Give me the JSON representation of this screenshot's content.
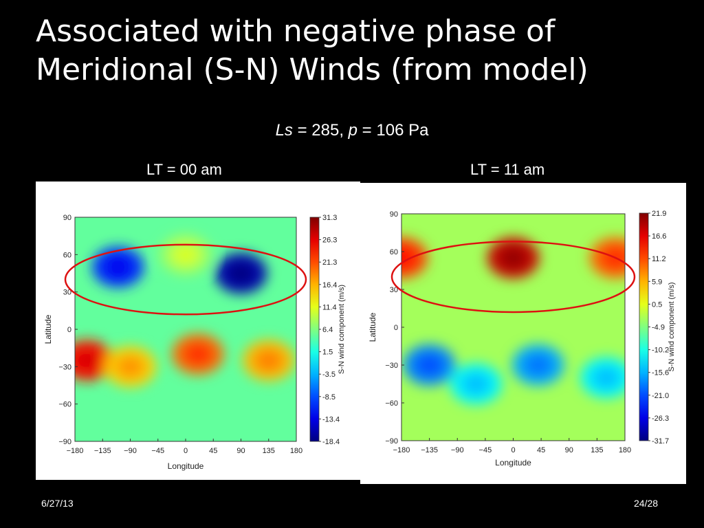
{
  "slide": {
    "title_line1": "Associated with negative phase of",
    "title_line2": "Meridional (S-N) Winds (from model)",
    "subtitle": {
      "ls_symbol": "Ls",
      "ls_text": " = 285, ",
      "p_symbol": "p",
      "p_text": " = 106 Pa"
    },
    "date": "6/27/13",
    "page": "24/28"
  },
  "colors": {
    "background": "#000000",
    "highlight_ellipse": "#dd1111"
  },
  "chart_data": [
    {
      "type": "heatmap",
      "panel_label": "LT = 00 am",
      "xlabel": "Longitude",
      "ylabel": "Latitude",
      "colorbar_label": "S-N wind component (m/s)",
      "x_ticks": [
        "−180",
        "−135",
        "−90",
        "−45",
        "0",
        "45",
        "90",
        "135",
        "180"
      ],
      "y_ticks": [
        "90",
        "60",
        "30",
        "0",
        "−30",
        "−60",
        "−90"
      ],
      "xlim": [
        -180,
        180
      ],
      "ylim": [
        -90,
        90
      ],
      "colorbar_ticks": [
        "31.3",
        "26.3",
        "21.3",
        "16.4",
        "11.4",
        "6.4",
        "1.5",
        "-3.5",
        "-8.5",
        "-13.4",
        "-18.4"
      ],
      "value_range": [
        -18.4,
        31.3
      ],
      "features": [
        {
          "lon": -110,
          "lat": 50,
          "value": -10
        },
        {
          "lon": 90,
          "lat": 45,
          "value": -16
        },
        {
          "lon": -160,
          "lat": -25,
          "value": 24
        },
        {
          "lon": 20,
          "lat": -20,
          "value": 20
        },
        {
          "lon": 135,
          "lat": -25,
          "value": 16
        },
        {
          "lon": -90,
          "lat": -30,
          "value": 15
        },
        {
          "lon": 0,
          "lat": 60,
          "value": 8
        }
      ],
      "highlight": {
        "lon_range": [
          -180,
          180
        ],
        "lat_center": 40,
        "lat_half_height": 28
      }
    },
    {
      "type": "heatmap",
      "panel_label": "LT = 11 am",
      "xlabel": "Longitude",
      "ylabel": "Latitude",
      "colorbar_label": "S-N wind component (m/s)",
      "x_ticks": [
        "−180",
        "−135",
        "−90",
        "−45",
        "0",
        "45",
        "90",
        "135",
        "180"
      ],
      "y_ticks": [
        "90",
        "60",
        "30",
        "0",
        "−30",
        "−60",
        "−90"
      ],
      "xlim": [
        -180,
        180
      ],
      "ylim": [
        -90,
        90
      ],
      "colorbar_ticks": [
        "21.9",
        "16.6",
        "11.2",
        "5.9",
        "0.5",
        "-4.9",
        "-10.2",
        "-15.6",
        "-21.0",
        "-26.3",
        "-31.7"
      ],
      "value_range": [
        -31.7,
        21.9
      ],
      "features": [
        {
          "lon": 0,
          "lat": 55,
          "value": 18
        },
        {
          "lon": -180,
          "lat": 55,
          "value": 12
        },
        {
          "lon": 165,
          "lat": 55,
          "value": 10
        },
        {
          "lon": -135,
          "lat": -30,
          "value": -18
        },
        {
          "lon": 40,
          "lat": -30,
          "value": -16
        },
        {
          "lon": 150,
          "lat": -40,
          "value": -12
        },
        {
          "lon": -60,
          "lat": -45,
          "value": -12
        }
      ],
      "highlight": {
        "lon_range": [
          -180,
          180
        ],
        "lat_center": 40,
        "lat_half_height": 28
      }
    }
  ]
}
